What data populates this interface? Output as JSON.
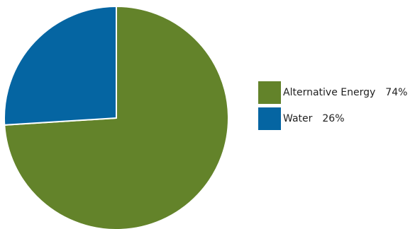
{
  "chart_data": {
    "type": "pie",
    "title": "",
    "slices": [
      {
        "label": "Alternative Energy",
        "value": 74,
        "display": "74%",
        "color": "#63832a"
      },
      {
        "label": "Water",
        "value": 26,
        "display": "26%",
        "color": "#0565a2"
      }
    ],
    "start_angle_deg": 0,
    "direction": "clockwise",
    "legend_position": "right",
    "slice_border_color": "#ffffff"
  }
}
